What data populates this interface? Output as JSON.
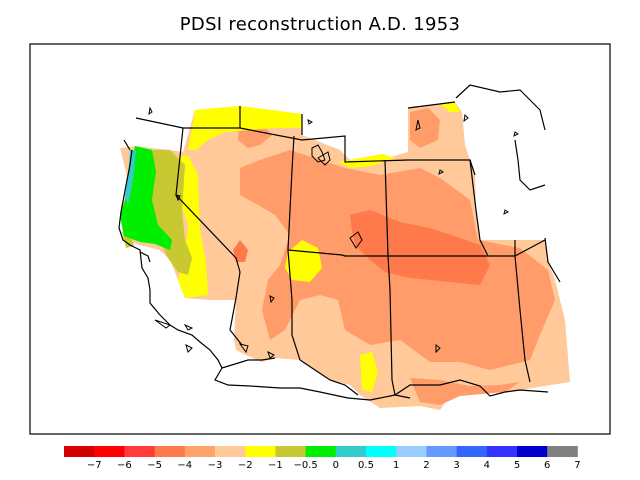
{
  "title": "PDSI reconstruction A.D. 1953",
  "legend": {
    "colors": [
      "#d40000",
      "#ff0000",
      "#ff3b3b",
      "#ff7a4a",
      "#ffa36b",
      "#ffc99a",
      "#ffff00",
      "#c8c832",
      "#00ee00",
      "#33cccc",
      "#00ffff",
      "#99ccff",
      "#6699ff",
      "#3366ff",
      "#3333ff",
      "#0000cc",
      "#808080"
    ],
    "labels": [
      "−7",
      "−6",
      "−5",
      "−4",
      "−3",
      "−2",
      "−1",
      "−0.5",
      "0",
      "0.5",
      "1",
      "2",
      "3",
      "4",
      "5",
      "6",
      "7"
    ]
  },
  "map_colors": {
    "base": "#ffc99a",
    "drought_moderate": "#ff9c6a",
    "drought_severe": "#ff7a4a",
    "dry_mild": "#ffff00",
    "near_normal": "#c8c832",
    "wet": "#00ee00",
    "wetter": "#33cccc"
  }
}
